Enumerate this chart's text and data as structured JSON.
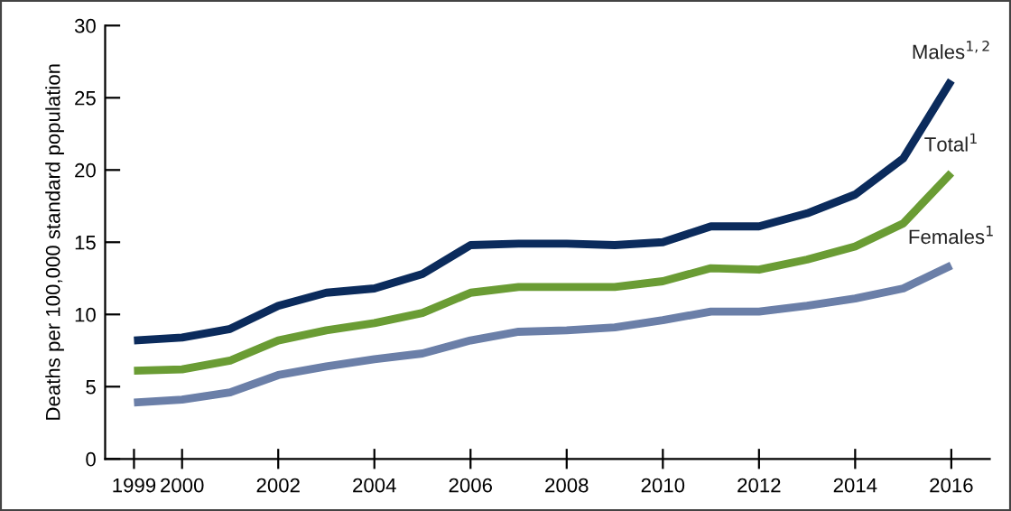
{
  "chart_data": {
    "type": "line",
    "ylabel": "Deaths per 100,000 standard population",
    "x": [
      1999,
      2000,
      2001,
      2002,
      2003,
      2004,
      2005,
      2006,
      2007,
      2008,
      2009,
      2010,
      2011,
      2012,
      2013,
      2014,
      2015,
      2016
    ],
    "series": [
      {
        "name": "Males$^{1,2}$",
        "color": "#0b2b5c",
        "values": [
          8.2,
          8.4,
          9.0,
          10.6,
          11.5,
          11.8,
          12.8,
          14.8,
          14.9,
          14.9,
          14.8,
          15.0,
          16.1,
          16.1,
          17.0,
          18.3,
          20.8,
          26.2
        ]
      },
      {
        "name": "Total$^{1}$",
        "color": "#6a9c34",
        "values": [
          6.1,
          6.2,
          6.8,
          8.2,
          8.9,
          9.4,
          10.1,
          11.5,
          11.9,
          11.9,
          11.9,
          12.3,
          13.2,
          13.1,
          13.8,
          14.7,
          16.3,
          19.8
        ]
      },
      {
        "name": "Females$^{1}$",
        "color": "#6b7fa8",
        "values": [
          3.9,
          4.1,
          4.6,
          5.8,
          6.4,
          6.9,
          7.3,
          8.2,
          8.8,
          8.9,
          9.1,
          9.6,
          10.2,
          10.2,
          10.6,
          11.1,
          11.8,
          13.4
        ]
      }
    ],
    "xlim": [
      1998.4,
      2016.8
    ],
    "xticks": [
      1999,
      2000,
      2002,
      2004,
      2006,
      2008,
      2010,
      2012,
      2014,
      2016
    ],
    "ylim": [
      0,
      30
    ],
    "yticks": [
      0,
      5,
      10,
      15,
      20,
      25,
      30
    ],
    "grid": false,
    "legend": false,
    "marker": "none",
    "line_style": "solid"
  }
}
